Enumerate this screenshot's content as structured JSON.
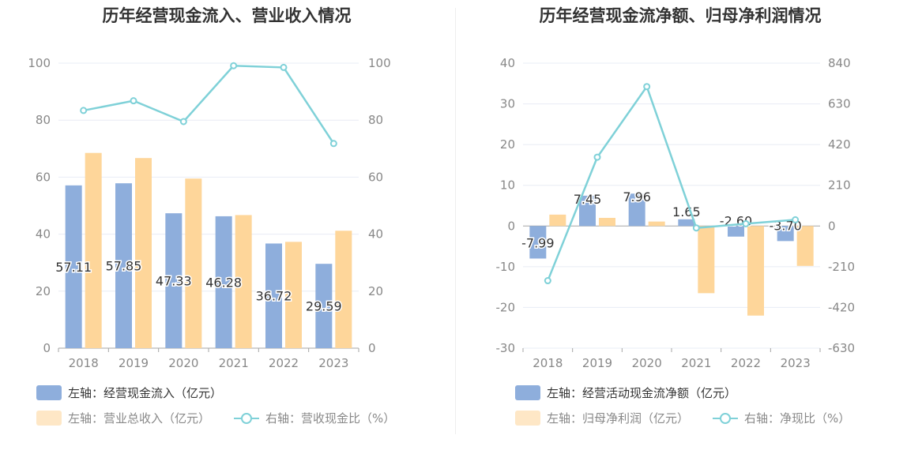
{
  "colors": {
    "inflow": "#8eaedc",
    "revenue": "#fed69a",
    "ratio": "#7fd1d8",
    "grid": "#e8ecf4",
    "axis_text": "#888888",
    "label_text": "#333333"
  },
  "chart_data": [
    {
      "type": "bar",
      "title": "历年经营现金流入、营业收入情况",
      "categories": [
        "2018",
        "2019",
        "2020",
        "2021",
        "2022",
        "2023"
      ],
      "ylim_left": [
        0,
        100
      ],
      "ylim_right": [
        0,
        100
      ],
      "yticks_left": [
        "0",
        "20",
        "40",
        "60",
        "80",
        "100"
      ],
      "yticks_right": [
        "0",
        "20",
        "40",
        "60",
        "80",
        "100"
      ],
      "series": [
        {
          "name": "左轴：经营现金流入（亿元）",
          "kind": "bar",
          "axis": "left",
          "values": [
            57.11,
            57.85,
            47.33,
            46.28,
            36.72,
            29.59
          ],
          "labels": [
            "57.11",
            "57.85",
            "47.33",
            "46.28",
            "36.72",
            "29.59"
          ]
        },
        {
          "name": "左轴：营业总收入（亿元）",
          "kind": "bar",
          "axis": "left",
          "values": [
            68.5,
            66.7,
            59.5,
            46.7,
            37.3,
            41.2
          ]
        },
        {
          "name": "右轴：营收现金比（%）",
          "kind": "line",
          "axis": "right",
          "values": [
            83.4,
            86.8,
            79.5,
            99.1,
            98.5,
            71.8
          ]
        }
      ]
    },
    {
      "type": "bar",
      "title": "历年经营现金流净额、归母净利润情况",
      "categories": [
        "2018",
        "2019",
        "2020",
        "2021",
        "2022",
        "2023"
      ],
      "ylim_left": [
        -30,
        40
      ],
      "ylim_right": [
        -630,
        840
      ],
      "yticks_left": [
        "-30",
        "-20",
        "-10",
        "0",
        "10",
        "20",
        "30",
        "40"
      ],
      "yticks_right": [
        "-630",
        "-420",
        "-210",
        "0",
        "210",
        "420",
        "630",
        "840"
      ],
      "series": [
        {
          "name": "左轴：经营活动现金流净额（亿元）",
          "kind": "bar",
          "axis": "left",
          "values": [
            -7.99,
            7.45,
            7.96,
            1.65,
            -2.6,
            -3.7
          ],
          "labels": [
            "-7.99",
            "7.45",
            "7.96",
            "1.65",
            "-2.60",
            "-3.70"
          ]
        },
        {
          "name": "左轴：归母净利润（亿元）",
          "kind": "bar",
          "axis": "left",
          "values": [
            2.8,
            2.0,
            1.1,
            -16.5,
            -22.0,
            -9.8
          ]
        },
        {
          "name": "右轴：净现比（%）",
          "kind": "line",
          "axis": "right",
          "values": [
            -282,
            355,
            719,
            -10,
            12,
            32
          ]
        }
      ]
    }
  ]
}
